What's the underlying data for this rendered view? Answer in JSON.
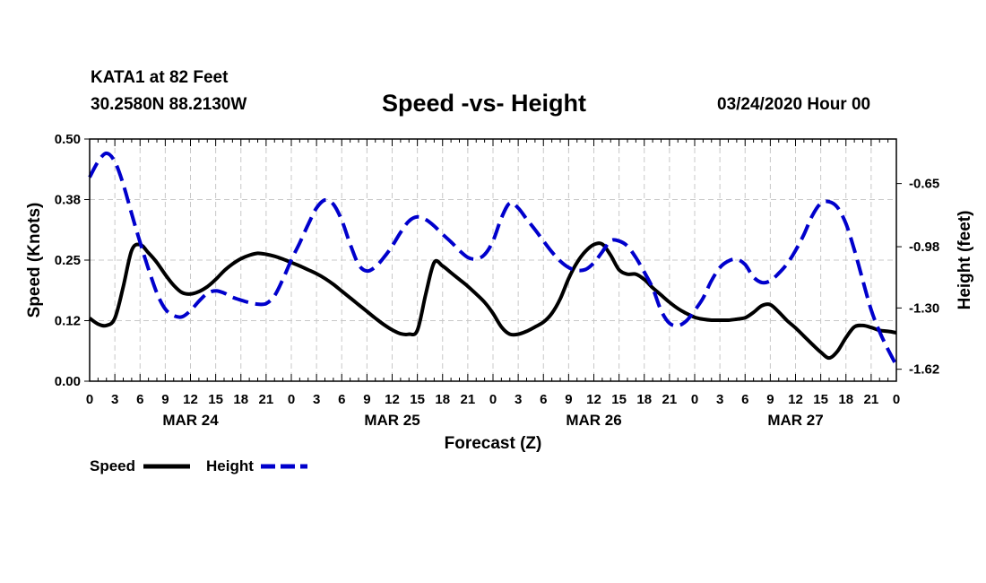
{
  "header": {
    "station": "KATA1 at 82 Feet",
    "coordinates": "30.2580N 88.2130W",
    "title": "Speed -vs- Height",
    "date": "03/24/2020 Hour 00"
  },
  "chart_data": {
    "type": "line",
    "title": "Speed -vs- Height",
    "xlabel": "Forecast (Z)",
    "ylabel": "Speed (Knots)",
    "y2label": "Height (feet)",
    "xlim": [
      0,
      96
    ],
    "ylim": [
      0,
      0.5
    ],
    "y2lim": [
      -1.6825,
      -0.4175
    ],
    "grid": true,
    "x_tick_labels": [
      "0",
      "3",
      "6",
      "9",
      "12",
      "15",
      "18",
      "21",
      "0",
      "3",
      "6",
      "9",
      "12",
      "15",
      "18",
      "21",
      "0",
      "3",
      "6",
      "9",
      "12",
      "15",
      "18",
      "21",
      "0",
      "3",
      "6",
      "9",
      "12",
      "15",
      "18",
      "21",
      "0"
    ],
    "day_labels": [
      {
        "hour": 12,
        "label": "MAR 24"
      },
      {
        "hour": 36,
        "label": "MAR 25"
      },
      {
        "hour": 60,
        "label": "MAR 26"
      },
      {
        "hour": 84,
        "label": "MAR 27"
      }
    ],
    "y_tick_labels": [
      "0.00",
      "0.12",
      "0.25",
      "0.38",
      "0.50"
    ],
    "y2_tick_labels": [
      "-0.65",
      "-0.98",
      "-1.30",
      "-1.62"
    ],
    "series": [
      {
        "name": "Speed",
        "axis": "left",
        "color": "#000000",
        "style": "solid",
        "x": [
          0,
          1,
          2,
          3,
          4,
          5,
          6,
          7,
          8,
          9,
          10,
          11,
          12,
          13,
          14,
          15,
          16,
          17,
          18,
          19,
          20,
          21,
          22,
          23,
          24,
          25,
          26,
          27,
          28,
          29,
          30,
          31,
          32,
          33,
          34,
          35,
          36,
          37,
          38,
          39,
          40,
          41,
          42,
          43,
          44,
          45,
          46,
          47,
          48,
          49,
          50,
          51,
          52,
          53,
          54,
          55,
          56,
          57,
          58,
          59,
          60,
          61,
          62,
          63,
          64,
          65,
          66,
          67,
          68,
          69,
          70,
          71,
          72,
          73,
          74,
          75,
          76,
          77,
          78,
          79,
          80,
          81,
          82,
          83,
          84,
          85,
          86,
          87,
          88,
          89,
          90,
          91,
          92,
          93,
          94,
          95,
          96
        ],
        "values": [
          0.13,
          0.118,
          0.115,
          0.13,
          0.195,
          0.27,
          0.282,
          0.265,
          0.245,
          0.22,
          0.198,
          0.183,
          0.18,
          0.185,
          0.195,
          0.21,
          0.228,
          0.242,
          0.253,
          0.26,
          0.264,
          0.262,
          0.258,
          0.252,
          0.245,
          0.238,
          0.23,
          0.222,
          0.212,
          0.2,
          0.186,
          0.172,
          0.158,
          0.144,
          0.13,
          0.117,
          0.106,
          0.098,
          0.097,
          0.105,
          0.18,
          0.245,
          0.238,
          0.224,
          0.21,
          0.196,
          0.18,
          0.163,
          0.14,
          0.112,
          0.097,
          0.097,
          0.103,
          0.112,
          0.122,
          0.14,
          0.17,
          0.212,
          0.245,
          0.268,
          0.282,
          0.283,
          0.26,
          0.23,
          0.221,
          0.221,
          0.21,
          0.193,
          0.178,
          0.163,
          0.15,
          0.14,
          0.132,
          0.128,
          0.126,
          0.126,
          0.126,
          0.128,
          0.131,
          0.142,
          0.156,
          0.158,
          0.143,
          0.125,
          0.11,
          0.093,
          0.076,
          0.06,
          0.048,
          0.062,
          0.09,
          0.112,
          0.115,
          0.111,
          0.105,
          0.103,
          0.1
        ]
      },
      {
        "name": "Height",
        "axis": "right",
        "color": "#0000cc",
        "style": "dashed",
        "x": [
          0,
          1,
          2,
          3,
          4,
          5,
          6,
          7,
          8,
          9,
          10,
          11,
          12,
          13,
          14,
          15,
          16,
          17,
          18,
          19,
          20,
          21,
          22,
          23,
          24,
          25,
          26,
          27,
          28,
          29,
          30,
          31,
          32,
          33,
          34,
          35,
          36,
          37,
          38,
          39,
          40,
          41,
          42,
          43,
          44,
          45,
          46,
          47,
          48,
          49,
          50,
          51,
          52,
          53,
          54,
          55,
          56,
          57,
          58,
          59,
          60,
          61,
          62,
          63,
          64,
          65,
          66,
          67,
          68,
          69,
          70,
          71,
          72,
          73,
          74,
          75,
          76,
          77,
          78,
          79,
          80,
          81,
          82,
          83,
          84,
          85,
          86,
          87,
          88,
          89,
          90,
          91,
          92,
          93,
          94,
          95,
          96
        ],
        "values": [
          -0.617,
          -0.536,
          -0.492,
          -0.536,
          -0.654,
          -0.808,
          -0.957,
          -1.096,
          -1.222,
          -1.306,
          -1.34,
          -1.346,
          -1.314,
          -1.265,
          -1.224,
          -1.21,
          -1.222,
          -1.244,
          -1.259,
          -1.272,
          -1.28,
          -1.277,
          -1.236,
          -1.15,
          -1.049,
          -0.96,
          -0.864,
          -0.778,
          -0.736,
          -0.758,
          -0.842,
          -0.966,
          -1.073,
          -1.107,
          -1.085,
          -1.037,
          -0.977,
          -0.905,
          -0.846,
          -0.824,
          -0.838,
          -0.872,
          -0.915,
          -0.955,
          -1.0,
          -1.036,
          -1.044,
          -1.021,
          -0.95,
          -0.83,
          -0.752,
          -0.778,
          -0.836,
          -0.891,
          -0.95,
          -1.007,
          -1.055,
          -1.089,
          -1.103,
          -1.099,
          -1.064,
          -1.007,
          -0.949,
          -0.95,
          -0.977,
          -1.037,
          -1.113,
          -1.196,
          -1.313,
          -1.38,
          -1.392,
          -1.368,
          -1.313,
          -1.248,
          -1.157,
          -1.089,
          -1.055,
          -1.046,
          -1.073,
          -1.139,
          -1.167,
          -1.158,
          -1.119,
          -1.069,
          -1.0,
          -0.916,
          -0.817,
          -0.754,
          -0.745,
          -0.775,
          -0.86,
          -0.996,
          -1.155,
          -1.31,
          -1.424,
          -1.516,
          -1.6
        ]
      }
    ],
    "legend": [
      {
        "label": "Speed",
        "color": "#000000",
        "style": "solid"
      },
      {
        "label": "Height",
        "color": "#0000cc",
        "style": "dashed"
      }
    ],
    "legend_position": "bottom-left"
  }
}
